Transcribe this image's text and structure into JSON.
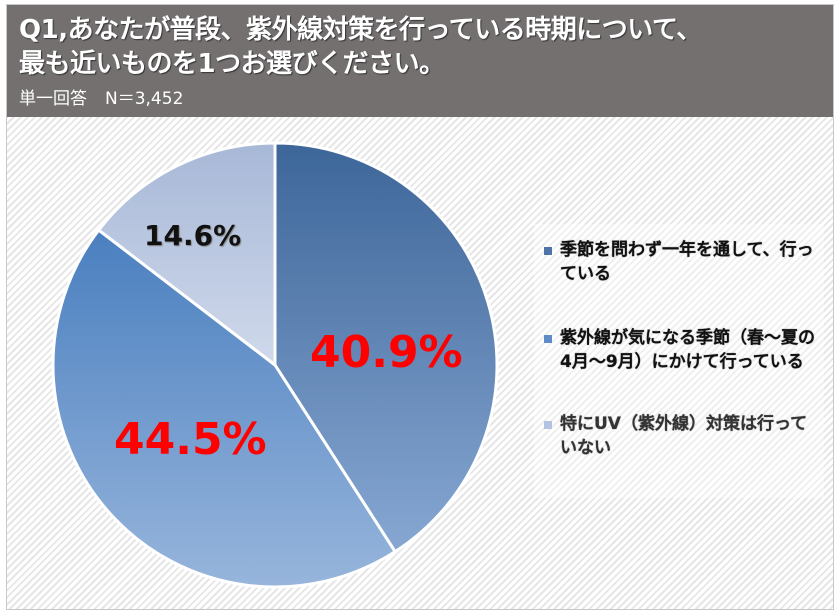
{
  "header": {
    "title_line1": "Q1,あなたが普段、紫外線対策を行っている時期について、",
    "title_line2": "最も近いものを1つお選びください。",
    "answer_type": "単一回答",
    "sample_size": "N＝3,452"
  },
  "legend": {
    "items": [
      {
        "label": "季節を問わず一年を通して、行っている",
        "color": "#4f74a8"
      },
      {
        "label": "紫外線が気になる季節（春～夏の4月～9月）にかけて行っている",
        "color": "#5f8cc8"
      },
      {
        "label": "特にUV（紫外線）対策は行っていない",
        "color": "#b4c4e0"
      }
    ]
  },
  "labels": {
    "slice1": "40.9%",
    "slice2": "44.5%",
    "slice3": "14.6%"
  },
  "colors": {
    "header_bg": "#747070",
    "label_red": "#ff0000"
  },
  "chart_data": {
    "type": "pie",
    "title": "Q1,あなたが普段、紫外線対策を行っている時期について、最も近いものを1つお選びください。",
    "subtitle": "単一回答 N＝3,452",
    "categories": [
      "季節を問わず一年を通して、行っている",
      "紫外線が気になる季節（春～夏の4月～9月）にかけて行っている",
      "特にUV（紫外線）対策は行っていない"
    ],
    "values": [
      40.9,
      44.5,
      14.6
    ],
    "unit": "%",
    "start_angle": "12 o'clock, clockwise",
    "legend_position": "right"
  }
}
